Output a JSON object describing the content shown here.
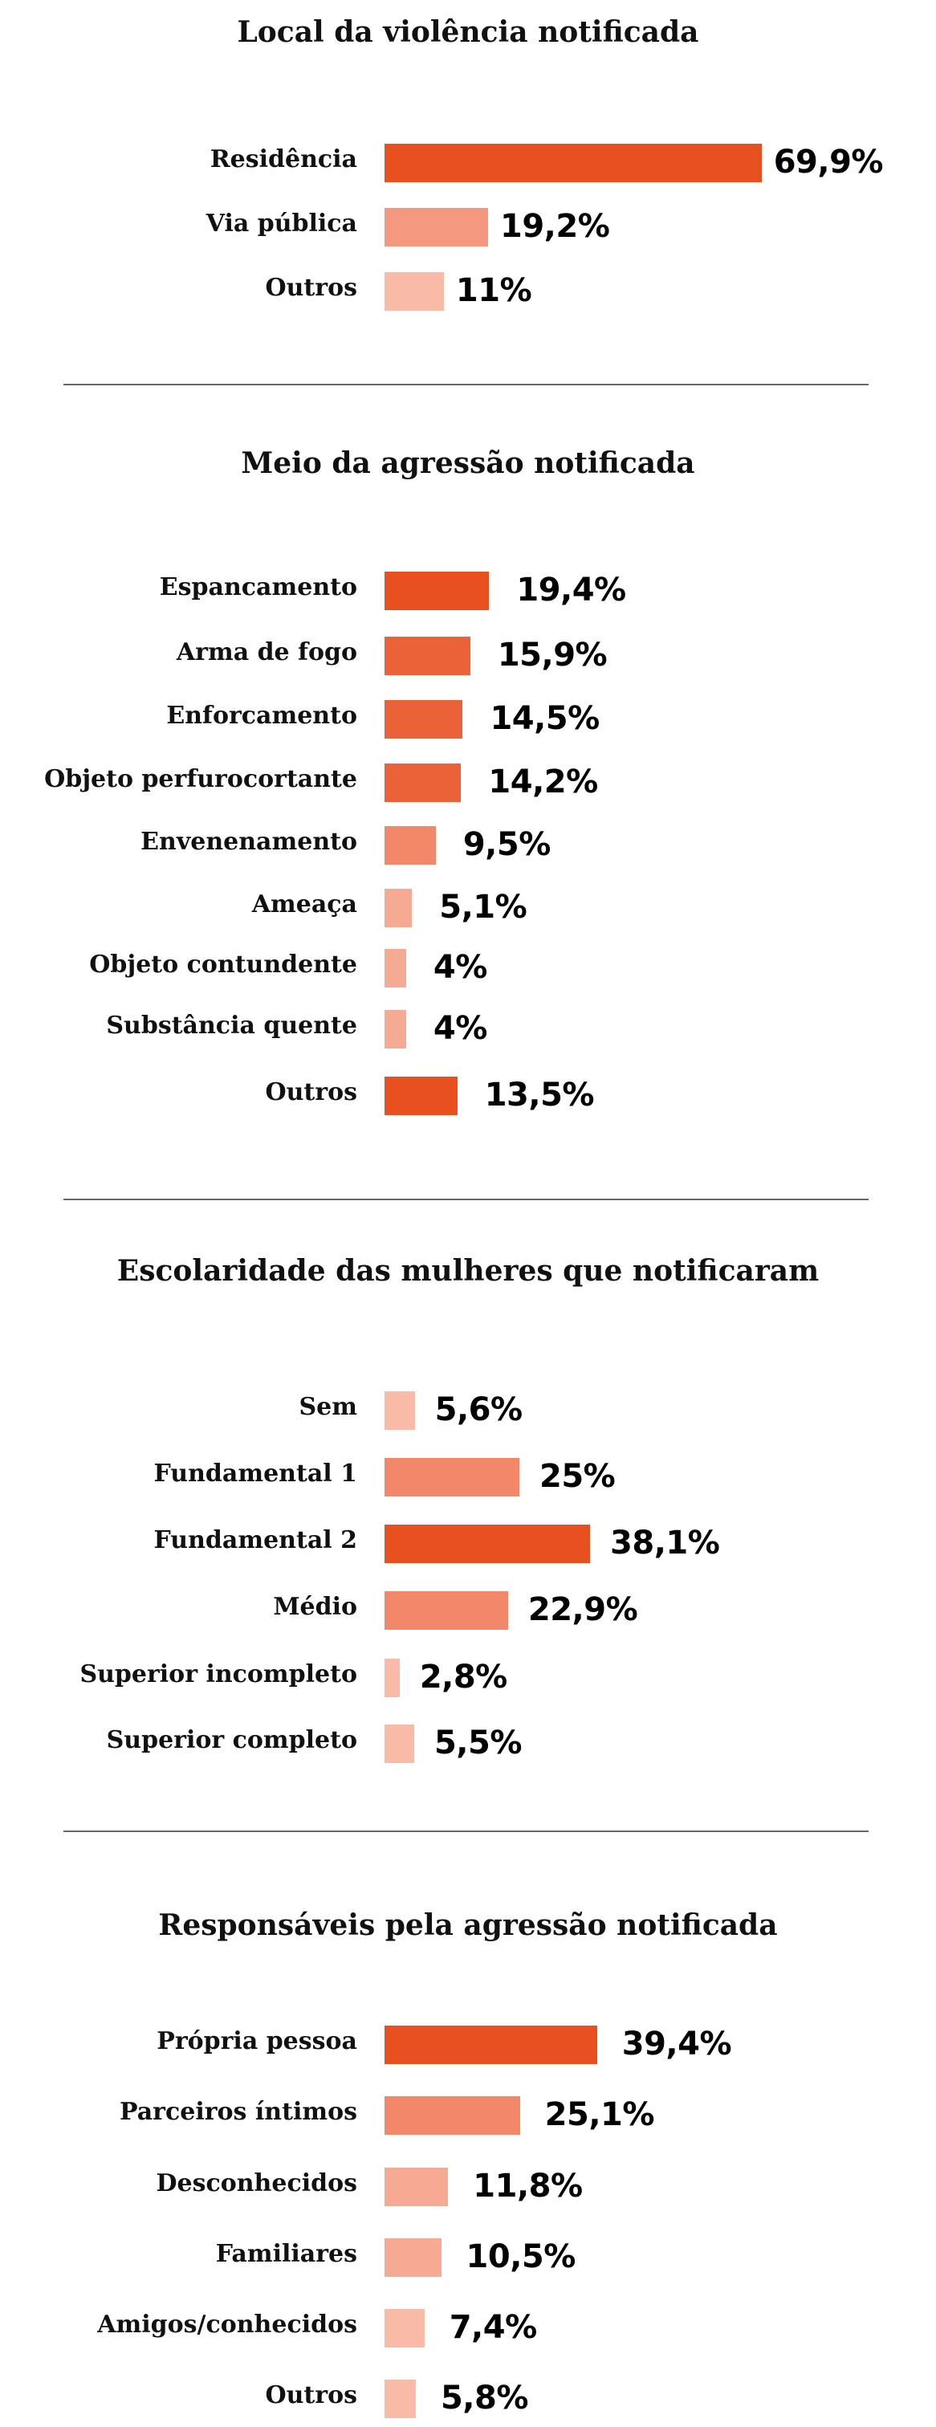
{
  "chart_data": [
    {
      "type": "bar",
      "orientation": "horizontal",
      "title": "Local da violência notificada",
      "categories": [
        "Residência",
        "Via pública",
        "Outros"
      ],
      "values": [
        69.9,
        19.2,
        11
      ],
      "value_labels": [
        "69,9%",
        "19,2%",
        "11%"
      ],
      "colors": [
        "#E8511F",
        "#F59880",
        "#F9BAA7"
      ],
      "unit": "%",
      "xlabel": "",
      "ylabel": "",
      "xlim": [
        0,
        100
      ],
      "grid": false,
      "legend": "none"
    },
    {
      "type": "bar",
      "orientation": "horizontal",
      "title": "Meio da agressão notificada",
      "categories": [
        "Espancamento",
        "Arma de fogo",
        "Enforcamento",
        "Objeto perfurocortante",
        "Envenenamento",
        "Ameaça",
        "Objeto contundente",
        "Substância quente",
        "Outros"
      ],
      "values": [
        19.4,
        15.9,
        14.5,
        14.2,
        9.5,
        5.1,
        4,
        4,
        13.5
      ],
      "value_labels": [
        "19,4%",
        "15,9%",
        "14,5%",
        "14,2%",
        "9,5%",
        "5,1%",
        "4%",
        "4%",
        "13,5%"
      ],
      "colors": [
        "#E8511F",
        "#EC6238",
        "#EC6238",
        "#EC6238",
        "#F3876A",
        "#F6AA94",
        "#F6AA94",
        "#F6AA94",
        "#E8511F"
      ],
      "unit": "%",
      "xlabel": "",
      "ylabel": "",
      "xlim": [
        0,
        100
      ],
      "grid": false,
      "legend": "none"
    },
    {
      "type": "bar",
      "orientation": "horizontal",
      "title": "Escolaridade das mulheres que notificaram",
      "categories": [
        "Sem",
        "Fundamental 1",
        "Fundamental 2",
        "Médio",
        "Superior incompleto",
        "Superior completo"
      ],
      "values": [
        5.6,
        25,
        38.1,
        22.9,
        2.8,
        5.5
      ],
      "value_labels": [
        "5,6%",
        "25%",
        "38,1%",
        "22,9%",
        "2,8%",
        "5,5%"
      ],
      "colors": [
        "#F9BAA7",
        "#F3876A",
        "#E8511F",
        "#F3876A",
        "#F9BAA7",
        "#F9BAA7"
      ],
      "unit": "%",
      "xlabel": "",
      "ylabel": "",
      "xlim": [
        0,
        100
      ],
      "grid": false,
      "legend": "none"
    },
    {
      "type": "bar",
      "orientation": "horizontal",
      "title": "Responsáveis pela agressão notificada",
      "categories": [
        "Própria pessoa",
        "Parceiros íntimos",
        "Desconhecidos",
        "Familiares",
        "Amigos/conhecidos",
        "Outros"
      ],
      "values": [
        39.4,
        25.1,
        11.8,
        10.5,
        7.4,
        5.8
      ],
      "value_labels": [
        "39,4%",
        "25,1%",
        "11,8%",
        "10,5%",
        "7,4%",
        "5,8%"
      ],
      "colors": [
        "#E8511F",
        "#F3876A",
        "#F6AA94",
        "#F6AA94",
        "#F9BAA7",
        "#F9BAA7"
      ],
      "unit": "%",
      "xlabel": "",
      "ylabel": "",
      "xlim": [
        0,
        100
      ],
      "grid": false,
      "legend": "none"
    }
  ]
}
